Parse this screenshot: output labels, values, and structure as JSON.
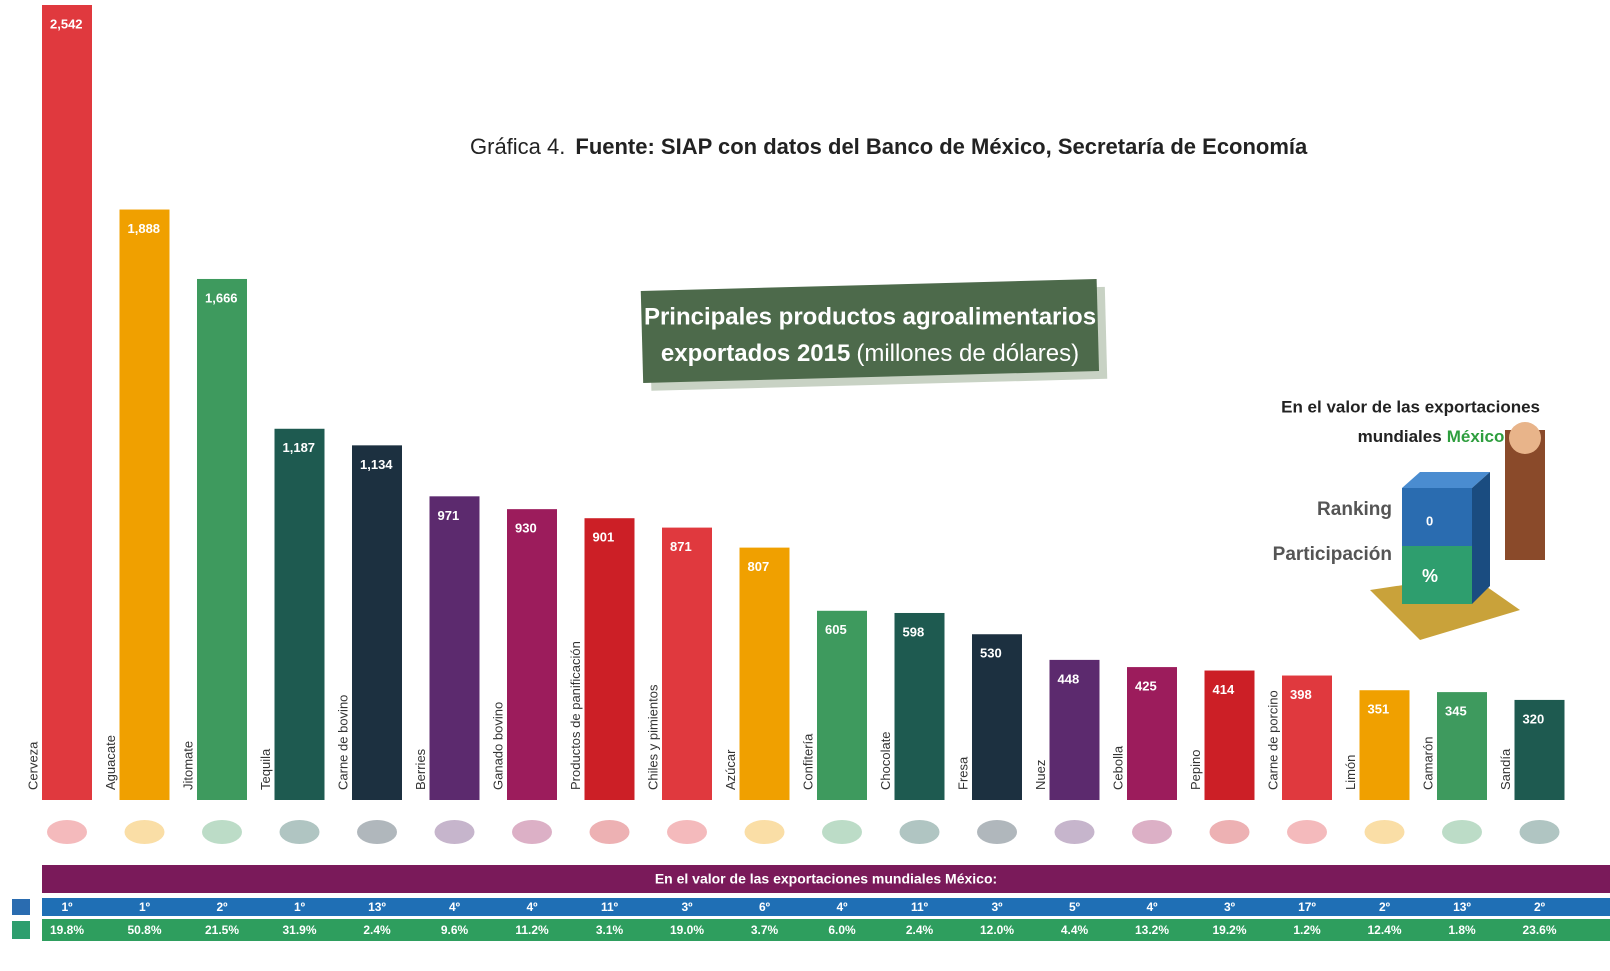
{
  "caption": {
    "label": "Gráfica 4.",
    "source": "Fuente: SIAP con datos del Banco de México, Secretaría de Economía"
  },
  "chart_data": {
    "type": "bar",
    "title": "Principales productos agroalimentarios",
    "title_line2": "exportados 2015",
    "unit": "(millones de dólares)",
    "categories": [
      "Cerveza",
      "Aguacate",
      "Jitomate",
      "Tequila",
      "Carne de bovino",
      "Berries",
      "Ganado bovino",
      "Productos de panificación",
      "Chiles y pimientos",
      "Azúcar",
      "Confitería",
      "Chocolate",
      "Fresa",
      "Nuez",
      "Cebolla",
      "Pepino",
      "Carne de porcino",
      "Limón",
      "Camarón",
      "Sandía"
    ],
    "values": [
      2542,
      1888,
      1666,
      1187,
      1134,
      971,
      930,
      901,
      871,
      807,
      605,
      598,
      530,
      448,
      425,
      414,
      398,
      351,
      345,
      320
    ],
    "value_labels": [
      "2,542",
      "1,888",
      "1,666",
      "1,187",
      "1,134",
      "971",
      "930",
      "901",
      "871",
      "807",
      "605",
      "598",
      "530",
      "448",
      "425",
      "414",
      "398",
      "351",
      "345",
      "320"
    ],
    "colors": [
      "#e0393e",
      "#f0a000",
      "#3e9a5e",
      "#1e5a50",
      "#1c3040",
      "#5c2a6e",
      "#9c1c5c",
      "#cc1f26",
      "#e0393e",
      "#f0a000",
      "#3e9a5e",
      "#1e5a50",
      "#1c3040",
      "#5c2a6e",
      "#9c1c5c",
      "#cc1f26",
      "#e0393e",
      "#f0a000",
      "#3e9a5e",
      "#1e5a50"
    ],
    "banner": "En el valor de las exportaciones mundiales México:",
    "ranking": [
      "1º",
      "1º",
      "2º",
      "1º",
      "13º",
      "4º",
      "4º",
      "11º",
      "3º",
      "6º",
      "4º",
      "11º",
      "3º",
      "5º",
      "4º",
      "3º",
      "17º",
      "2º",
      "13º",
      "2º"
    ],
    "participacion": [
      "19.8%",
      "50.8%",
      "21.5%",
      "31.9%",
      "2.4%",
      "9.6%",
      "11.2%",
      "3.1%",
      "19.0%",
      "3.7%",
      "6.0%",
      "2.4%",
      "12.0%",
      "4.4%",
      "13.2%",
      "19.2%",
      "1.2%",
      "12.4%",
      "1.8%",
      "23.6%"
    ],
    "legend": {
      "line1": "En el valor de las exportaciones",
      "line2": "mundiales",
      "highlight": "México:",
      "ranking": "Ranking",
      "participacion": "Participación",
      "ranking_symbol": "0",
      "participacion_symbol": "%"
    }
  }
}
